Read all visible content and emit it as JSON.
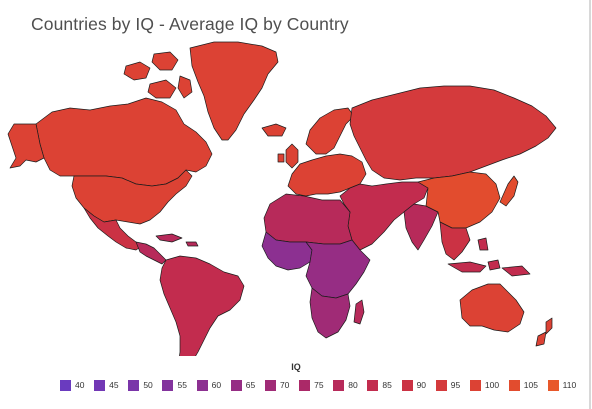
{
  "title": "Countries by IQ - Average IQ by Country",
  "legend": {
    "title": "IQ",
    "items": [
      {
        "label": "40",
        "color": "#6a3bbf"
      },
      {
        "label": "45",
        "color": "#7238b5"
      },
      {
        "label": "50",
        "color": "#7a35a9"
      },
      {
        "label": "55",
        "color": "#83339d"
      },
      {
        "label": "60",
        "color": "#8c3091"
      },
      {
        "label": "65",
        "color": "#962d84"
      },
      {
        "label": "70",
        "color": "#a02b76"
      },
      {
        "label": "75",
        "color": "#ab2968"
      },
      {
        "label": "80",
        "color": "#b72a5a"
      },
      {
        "label": "85",
        "color": "#c22c4e"
      },
      {
        "label": "90",
        "color": "#cb3244"
      },
      {
        "label": "95",
        "color": "#d43a3c"
      },
      {
        "label": "100",
        "color": "#dc4234"
      },
      {
        "label": "105",
        "color": "#e24c2e"
      },
      {
        "label": "110",
        "color": "#e8582a"
      }
    ]
  },
  "regions": [
    {
      "name": "greenland",
      "iq": 100
    },
    {
      "name": "canada",
      "iq": 100
    },
    {
      "name": "united-states",
      "iq": 98
    },
    {
      "name": "mexico",
      "iq": 88
    },
    {
      "name": "central-america",
      "iq": 80
    },
    {
      "name": "south-america",
      "iq": 85
    },
    {
      "name": "iceland",
      "iq": 100
    },
    {
      "name": "europe",
      "iq": 99
    },
    {
      "name": "russia",
      "iq": 97
    },
    {
      "name": "west-africa",
      "iq": 60
    },
    {
      "name": "north-africa",
      "iq": 82
    },
    {
      "name": "central-africa",
      "iq": 66
    },
    {
      "name": "southern-africa",
      "iq": 72
    },
    {
      "name": "madagascar",
      "iq": 82
    },
    {
      "name": "middle-east",
      "iq": 85
    },
    {
      "name": "india",
      "iq": 82
    },
    {
      "name": "china",
      "iq": 105
    },
    {
      "name": "southeast-asia",
      "iq": 90
    },
    {
      "name": "japan",
      "iq": 105
    },
    {
      "name": "indonesia",
      "iq": 85
    },
    {
      "name": "australia",
      "iq": 99
    },
    {
      "name": "new-zealand",
      "iq": 99
    }
  ]
}
